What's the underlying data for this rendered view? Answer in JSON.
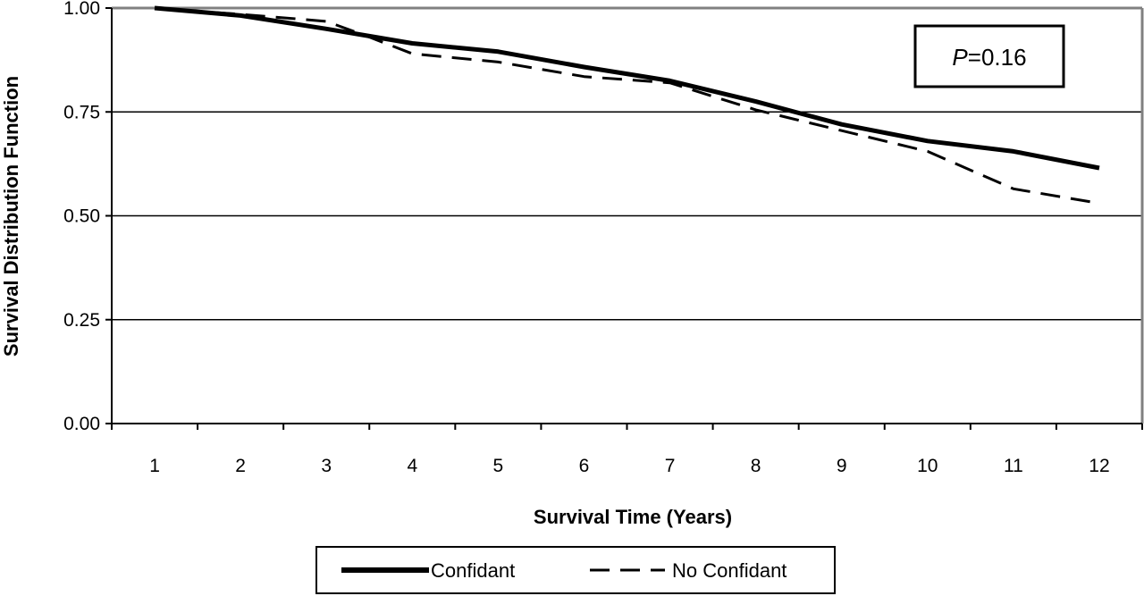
{
  "chart_data": {
    "type": "line",
    "title": "",
    "xlabel": "Survival Time (Years)",
    "ylabel": "Survival Distribution Function",
    "x": [
      1,
      2,
      3,
      4,
      5,
      6,
      7,
      8,
      9,
      10,
      11,
      12
    ],
    "xlim": [
      0,
      12
    ],
    "ylim": [
      0,
      1
    ],
    "yticks": [
      "0.00",
      "0.25",
      "0.50",
      "0.75",
      "1.00"
    ],
    "grid": "horizontal",
    "series": [
      {
        "name": "Confidant",
        "style": "solid",
        "points": [
          [
            1,
            1.0
          ],
          [
            2,
            0.982
          ],
          [
            3,
            0.95
          ],
          [
            4,
            0.915
          ],
          [
            5,
            0.895
          ],
          [
            6,
            0.858
          ],
          [
            7,
            0.825
          ],
          [
            8,
            0.775
          ],
          [
            9,
            0.72
          ],
          [
            10,
            0.68
          ],
          [
            11,
            0.655
          ],
          [
            12,
            0.615
          ]
        ]
      },
      {
        "name": "No Confidant",
        "style": "dashed",
        "points": [
          [
            1,
            1.0
          ],
          [
            2,
            0.985
          ],
          [
            3,
            0.968
          ],
          [
            3.5,
            0.93
          ],
          [
            4,
            0.89
          ],
          [
            5,
            0.87
          ],
          [
            6,
            0.835
          ],
          [
            7,
            0.82
          ],
          [
            8,
            0.755
          ],
          [
            9,
            0.705
          ],
          [
            10,
            0.655
          ],
          [
            11,
            0.565
          ],
          [
            12,
            0.53
          ]
        ]
      }
    ],
    "annotation": {
      "italic": "P",
      "rest": "=0.16"
    },
    "legend": {
      "position": "bottom"
    }
  },
  "colors": {
    "line": "#000000",
    "grid": "#000000",
    "frame": "#808080",
    "background": "#ffffff"
  }
}
